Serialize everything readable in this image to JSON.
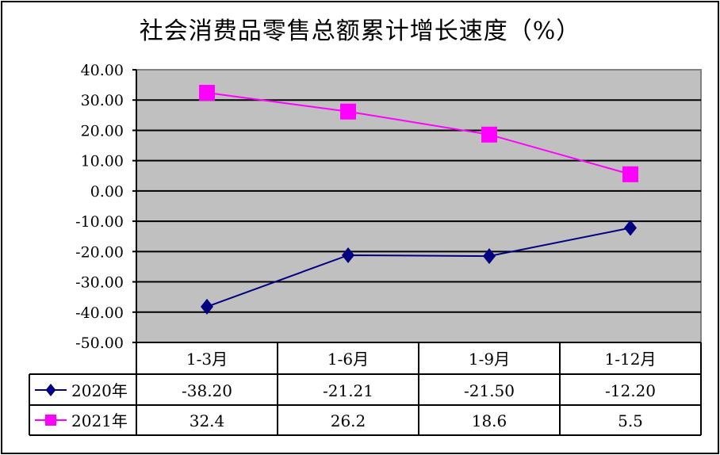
{
  "title": "社会消费品零售总额累计增长速度（%）",
  "chart_data": {
    "type": "line",
    "title": "社会消费品零售总额累计增长速度（%）",
    "xlabel": "",
    "ylabel": "",
    "ylim": [
      -50,
      40
    ],
    "yticks": [
      "40.00",
      "30.00",
      "20.00",
      "10.00",
      "0.00",
      "-10.00",
      "-20.00",
      "-30.00",
      "-40.00",
      "-50.00"
    ],
    "grid": true,
    "legend_position": "data-table-left",
    "categories": [
      "1-3月",
      "1-6月",
      "1-9月",
      "1-12月"
    ],
    "series": [
      {
        "name": "2020年",
        "values": [
          -38.2,
          -21.21,
          -21.5,
          -12.2
        ],
        "labels": [
          "-38.20",
          "-21.21",
          "-21.50",
          "-12.20"
        ],
        "color": "#000080",
        "marker": "diamond"
      },
      {
        "name": "2021年",
        "values": [
          32.4,
          26.2,
          18.6,
          5.5
        ],
        "labels": [
          "32.4",
          "26.2",
          "18.6",
          "5.5"
        ],
        "color": "#FF00FF",
        "marker": "square"
      }
    ]
  },
  "colors": {
    "plot_bg": "#C0C0C0",
    "grid": "#000000",
    "plot_border": "#808080"
  }
}
